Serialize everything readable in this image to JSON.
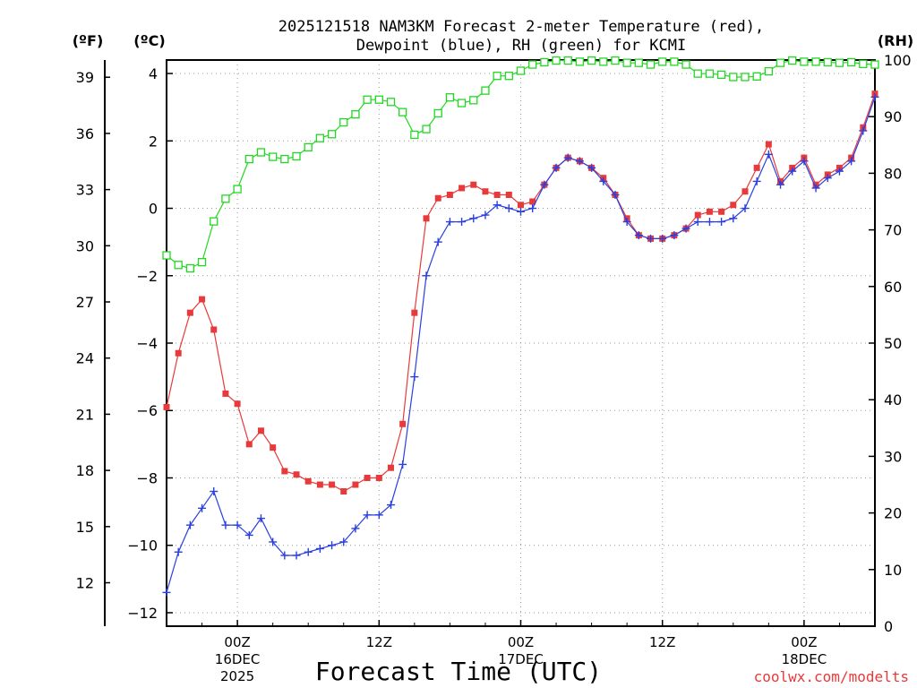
{
  "chart_data": {
    "type": "line",
    "title_line1": "2025121518 NAM3KM Forecast 2-meter Temperature (red),",
    "title_line2": "Dewpoint (blue), RH (green) for KCMI",
    "units": {
      "fahrenheit": "(ºF)",
      "celsius": "(ºC)",
      "rh": "(RH)"
    },
    "xlabel": "Forecast Time (UTC)",
    "credit": "coolwx.com/modelts",
    "x_unit": "forecast hour",
    "xlim": [
      0,
      60
    ],
    "ylim_c": [
      -12.4,
      4.4
    ],
    "ylim_rh": [
      0,
      100
    ],
    "y_ticks_c": [
      4,
      2,
      0,
      -2,
      -4,
      -6,
      -8,
      -10,
      -12
    ],
    "y_ticks_f": [
      39,
      36,
      33,
      30,
      27,
      24,
      21,
      18,
      15,
      12
    ],
    "y_ticks_rh": [
      100,
      90,
      80,
      70,
      60,
      50,
      40,
      30,
      20,
      10,
      0
    ],
    "x_ticks": [
      {
        "hour": 6,
        "label": "00Z",
        "sub1": "16DEC",
        "sub2": "2025"
      },
      {
        "hour": 18,
        "label": "12Z",
        "sub1": "",
        "sub2": ""
      },
      {
        "hour": 30,
        "label": "00Z",
        "sub1": "17DEC",
        "sub2": ""
      },
      {
        "hour": 42,
        "label": "12Z",
        "sub1": "",
        "sub2": ""
      },
      {
        "hour": 54,
        "label": "00Z",
        "sub1": "18DEC",
        "sub2": ""
      }
    ],
    "x_hours": [
      0,
      1,
      2,
      3,
      4,
      5,
      6,
      7,
      8,
      9,
      10,
      11,
      12,
      13,
      14,
      15,
      16,
      17,
      18,
      19,
      20,
      21,
      22,
      23,
      24,
      25,
      26,
      27,
      28,
      29,
      30,
      31,
      32,
      33,
      34,
      35,
      36,
      37,
      38,
      39,
      40,
      41,
      42,
      43,
      44,
      45,
      46,
      47,
      48,
      49,
      50,
      51,
      52,
      53,
      54,
      55,
      56,
      57,
      58,
      59,
      60
    ],
    "series": [
      {
        "name": "2-meter Temperature",
        "unit": "C",
        "color": "#e83a3a",
        "marker": "filled-square",
        "values": [
          -5.9,
          -4.3,
          -3.1,
          -2.7,
          -3.6,
          -5.5,
          -5.8,
          -7.0,
          -6.6,
          -7.1,
          -7.8,
          -7.9,
          -8.1,
          -8.2,
          -8.2,
          -8.4,
          -8.2,
          -8.0,
          -8.0,
          -7.7,
          -6.4,
          -3.1,
          -0.3,
          0.3,
          0.4,
          0.6,
          0.7,
          0.5,
          0.4,
          0.4,
          0.1,
          0.2,
          0.7,
          1.2,
          1.5,
          1.4,
          1.2,
          0.9,
          0.4,
          -0.3,
          -0.8,
          -0.9,
          -0.9,
          -0.8,
          -0.6,
          -0.2,
          -0.1,
          -0.1,
          0.1,
          0.5,
          1.2,
          1.9,
          0.8,
          1.2,
          1.5,
          0.7,
          1.0,
          1.2,
          1.5,
          2.4,
          3.4
        ]
      },
      {
        "name": "Dewpoint",
        "unit": "C",
        "color": "#2a3fe0",
        "marker": "plus",
        "values": [
          -11.4,
          -10.2,
          -9.4,
          -8.9,
          -8.4,
          -9.4,
          -9.4,
          -9.7,
          -9.2,
          -9.9,
          -10.3,
          -10.3,
          -10.2,
          -10.1,
          -10.0,
          -9.9,
          -9.5,
          -9.1,
          -9.1,
          -8.8,
          -7.6,
          -5.0,
          -2.0,
          -1.0,
          -0.4,
          -0.4,
          -0.3,
          -0.2,
          0.1,
          0.0,
          -0.1,
          0.0,
          0.7,
          1.2,
          1.5,
          1.4,
          1.2,
          0.8,
          0.4,
          -0.4,
          -0.8,
          -0.9,
          -0.9,
          -0.8,
          -0.6,
          -0.4,
          -0.4,
          -0.4,
          -0.3,
          0.0,
          0.8,
          1.6,
          0.7,
          1.1,
          1.4,
          0.6,
          0.9,
          1.1,
          1.4,
          2.3,
          3.3
        ]
      },
      {
        "name": "RH",
        "unit": "%",
        "color": "#22d822",
        "marker": "open-square",
        "values": [
          65.5,
          63.8,
          63.2,
          64.3,
          71.5,
          75.5,
          77.2,
          82.5,
          83.7,
          82.9,
          82.5,
          83.0,
          84.6,
          86.2,
          86.9,
          89.0,
          90.4,
          93.0,
          93.0,
          92.6,
          90.8,
          86.8,
          87.8,
          90.6,
          93.4,
          92.4,
          92.9,
          94.6,
          97.2,
          97.2,
          98.1,
          99.2,
          99.6,
          99.9,
          99.9,
          99.7,
          99.9,
          99.7,
          99.9,
          99.5,
          99.5,
          99.2,
          99.7,
          99.7,
          99.2,
          97.6,
          97.6,
          97.4,
          97.0,
          97.0,
          97.1,
          98.0,
          99.5,
          99.9,
          99.7,
          99.7,
          99.6,
          99.5,
          99.6,
          99.3,
          99.2
        ]
      }
    ]
  }
}
